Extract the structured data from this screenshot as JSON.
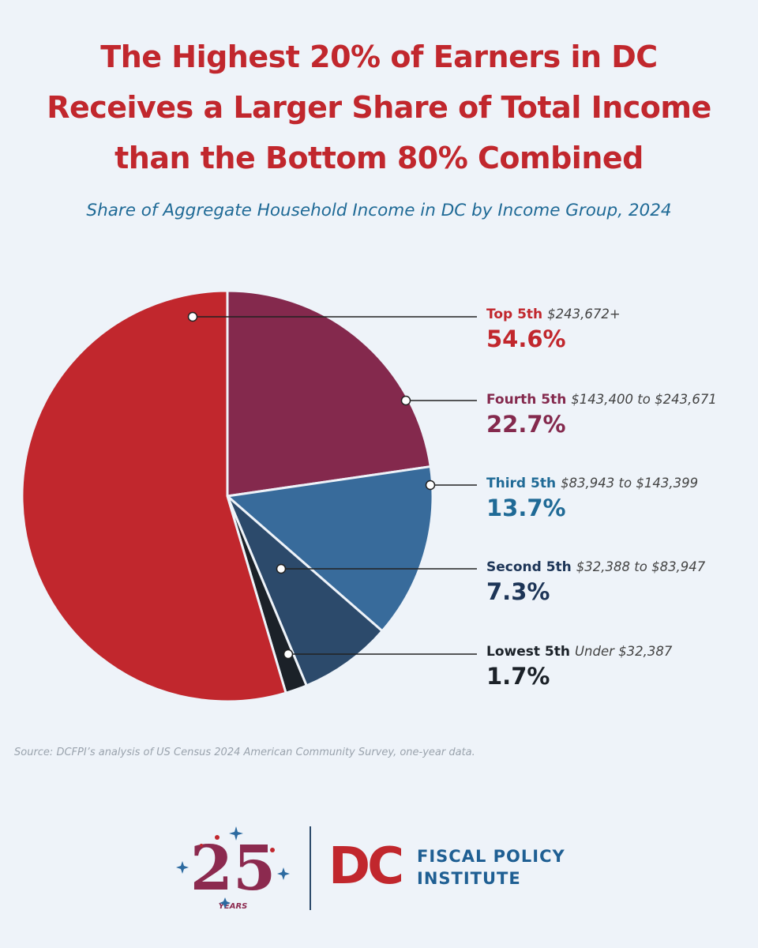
{
  "title_lines": [
    "The Highest 20% of Earners in DC",
    "Receives a Larger Share of Total Income",
    "than the Bottom 80% Combined"
  ],
  "chart_data": {
    "type": "pie",
    "title": "The Highest 20% of Earners in DC Receives a Larger Share of Total Income than the Bottom 80% Combined",
    "subtitle": "Share of Aggregate Household Income in DC by Income Group, 2024",
    "unit": "%",
    "slices": [
      {
        "name": "Top 5th",
        "range": "$243,672+",
        "value": 54.6,
        "label": "54.6%",
        "color": "#c1272d",
        "text_color": "#c1272d"
      },
      {
        "name": "Fourth 5th",
        "range": "$143,400 to $243,671",
        "value": 22.7,
        "label": "22.7%",
        "color": "#84294d",
        "text_color": "#84294d"
      },
      {
        "name": "Third 5th",
        "range": "$83,943 to $143,399",
        "value": 13.7,
        "label": "13.7%",
        "color": "#386b9b",
        "text_color": "#1f6a96"
      },
      {
        "name": "Second 5th",
        "range": "$32,388 to $83,947",
        "value": 7.3,
        "label": "7.3%",
        "color": "#2c4a6b",
        "text_color": "#1d3557"
      },
      {
        "name": "Lowest 5th",
        "range": "Under $32,387",
        "value": 1.7,
        "label": "1.7%",
        "color": "#1b2128",
        "text_color": "#1b2128"
      }
    ]
  },
  "source": "Source: DCFPI’s analysis of US Census 2024 American Community Survey, one-year data.",
  "logo": {
    "anniversary_number": "25",
    "anniversary_word": "YEARS",
    "dc_mark": "DC",
    "org_line1": "FISCAL POLICY",
    "org_line2": "INSTITUTE"
  }
}
